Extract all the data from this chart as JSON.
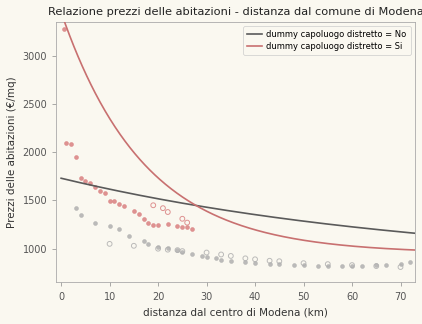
{
  "title": "Relazione prezzi delle abitazioni - distanza dal comune di Modena",
  "xlabel": "distanza dal centro di Modena (km)",
  "ylabel": "Prezzi delle abitazioni (€/mq)",
  "background_color": "#faf8f0",
  "plot_bg_color": "#faf8f0",
  "xlim": [
    -1,
    73
  ],
  "ylim": [
    650,
    3350
  ],
  "yticks": [
    1000,
    1500,
    2000,
    2500,
    3000
  ],
  "xticks": [
    0,
    10,
    20,
    30,
    40,
    50,
    60,
    70
  ],
  "legend_labels": [
    "dummy capoluogo distretto = No",
    "dummy capoluogo distretto = Si"
  ],
  "curve_no_color": "#5a5a5a",
  "curve_si_color": "#c87070",
  "scatter_no_color": "#b0b0b0",
  "scatter_si_color": "#d98080",
  "curve_no_params": {
    "a": 930,
    "b": 0.013,
    "c": 800
  },
  "curve_si_params": {
    "a": 2500,
    "b": 0.058,
    "c": 950
  },
  "scatter_no_x": [
    3,
    4,
    7,
    10,
    12,
    14,
    17,
    18,
    20,
    22,
    24,
    25,
    27,
    29,
    30,
    32,
    33,
    35,
    38,
    40,
    43,
    45,
    48,
    50,
    53,
    55,
    58,
    60,
    62,
    65,
    67,
    70,
    72
  ],
  "scatter_no_y": [
    1420,
    1350,
    1270,
    1240,
    1200,
    1130,
    1080,
    1050,
    1020,
    1010,
    990,
    970,
    945,
    925,
    910,
    900,
    880,
    870,
    860,
    850,
    845,
    840,
    835,
    830,
    825,
    820,
    820,
    820,
    825,
    830,
    835,
    840,
    860
  ],
  "scatter_no_open_x": [
    10,
    15,
    20,
    22,
    24,
    25,
    30,
    33,
    35,
    38,
    40,
    43,
    45,
    50,
    55,
    60,
    65,
    70
  ],
  "scatter_no_open_y": [
    1050,
    1030,
    1000,
    990,
    985,
    975,
    960,
    940,
    925,
    900,
    890,
    875,
    870,
    850,
    840,
    830,
    820,
    810
  ],
  "scatter_si_x": [
    0.5,
    1,
    2,
    3,
    4,
    5,
    6,
    7,
    8,
    9,
    10,
    11,
    12,
    13,
    15,
    16,
    17,
    18,
    19,
    20,
    22,
    24,
    25,
    26,
    27
  ],
  "scatter_si_y": [
    3280,
    2100,
    2080,
    1950,
    1730,
    1700,
    1680,
    1640,
    1600,
    1580,
    1490,
    1490,
    1460,
    1440,
    1390,
    1360,
    1310,
    1270,
    1250,
    1250,
    1260,
    1240,
    1220,
    1220,
    1200
  ],
  "scatter_si_open_x": [
    19,
    21,
    22,
    25,
    26
  ],
  "scatter_si_open_y": [
    1450,
    1420,
    1380,
    1310,
    1270
  ]
}
